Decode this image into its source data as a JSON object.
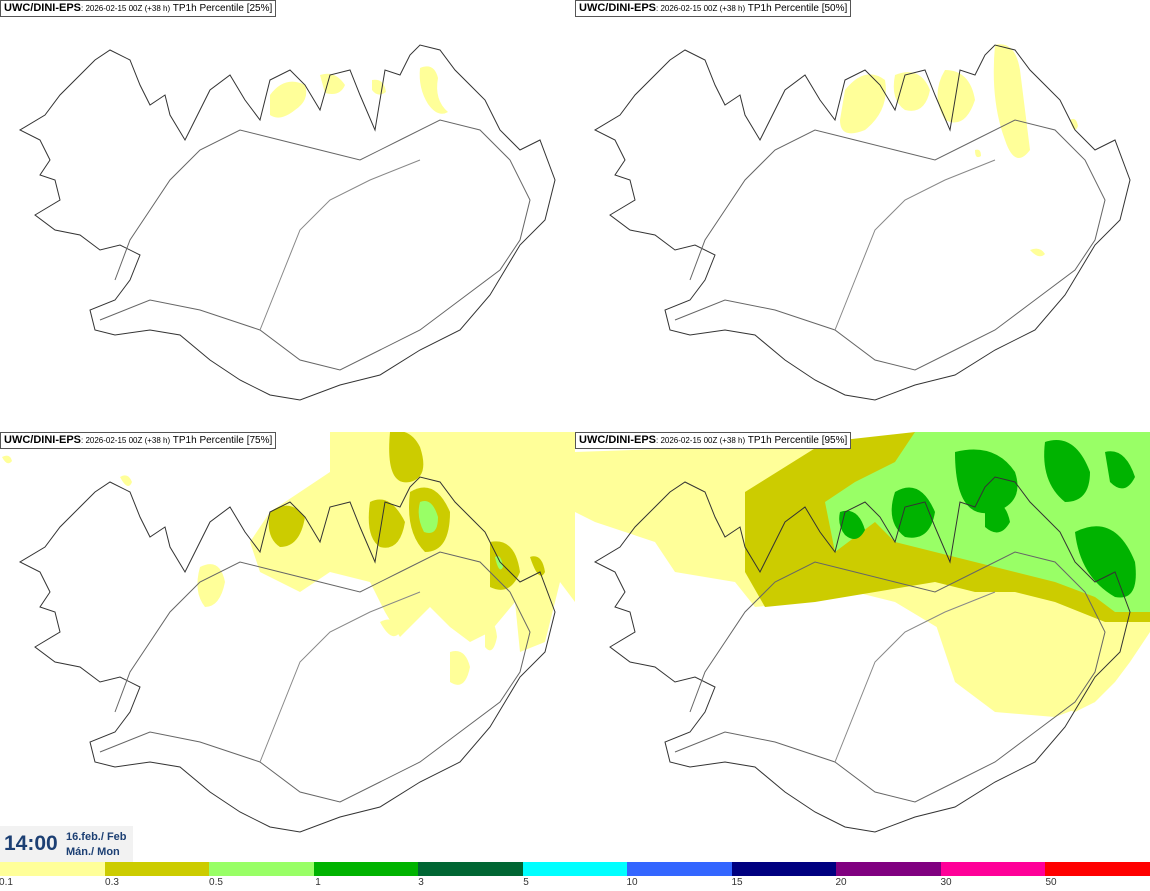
{
  "panels": [
    {
      "source": "UWC/DINI-EPS",
      "run": ": 2026-02-15 00Z (+38 h)",
      "field": " TP1h Percentile [25%]"
    },
    {
      "source": "UWC/DINI-EPS",
      "run": ": 2026-02-15 00Z (+38 h)",
      "field": " TP1h Percentile [50%]"
    },
    {
      "source": "UWC/DINI-EPS",
      "run": ": 2026-02-15 00Z (+38 h)",
      "field": " TP1h Percentile [75%]"
    },
    {
      "source": "UWC/DINI-EPS",
      "run": ": 2026-02-15 00Z (+38 h)",
      "field": " TP1h Percentile [95%]"
    }
  ],
  "valid_time": {
    "time": "14:00",
    "date_line1": "16.feb./ Feb",
    "date_line2": "Mán./ Mon"
  },
  "colorbar": {
    "colors": [
      "#ffff99",
      "#cccc00",
      "#99ff66",
      "#00b300",
      "#006633",
      "#00ffff",
      "#3366ff",
      "#000080",
      "#800080",
      "#ff0099",
      "#ff0000"
    ],
    "ticks": [
      "0.1",
      "0.3",
      "0.5",
      "1",
      "3",
      "5",
      "10",
      "15",
      "20",
      "30",
      "50"
    ]
  },
  "map_colors": {
    "light": "#ffff99",
    "olive": "#cccc00",
    "lightgreen": "#99ff66",
    "green": "#00b300",
    "coast": "#333333"
  }
}
